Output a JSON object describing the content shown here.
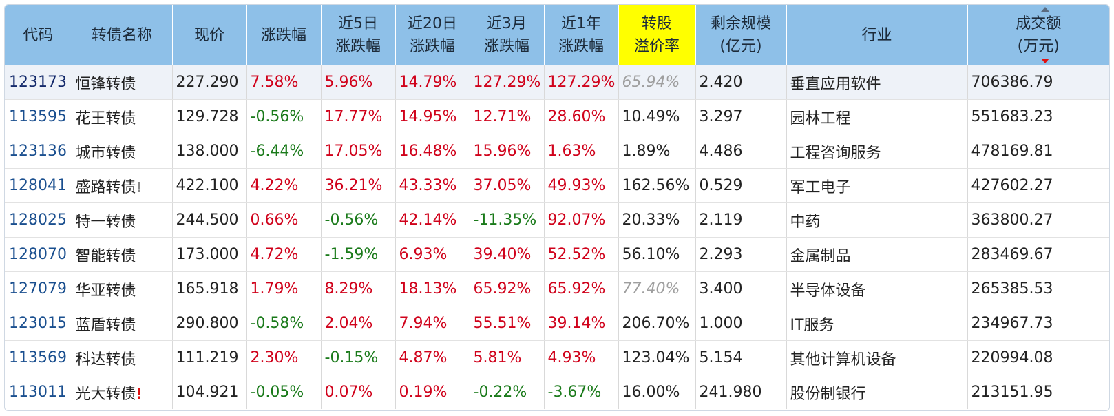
{
  "colors": {
    "header_bg": "#8ec0e8",
    "highlight_bg": "#ffff00",
    "up": "#d0021b",
    "down": "#1a7a1a",
    "code": "#1a4f8f"
  },
  "headers": {
    "code": "代码",
    "name": "转债名称",
    "price": "现价",
    "chg": "涨跌幅",
    "chg5d_l1": "近5日",
    "chg5d_l2": "涨跌幅",
    "chg20d_l1": "近20日",
    "chg20d_l2": "涨跌幅",
    "chg3m_l1": "近3月",
    "chg3m_l2": "涨跌幅",
    "chg1y_l1": "近1年",
    "chg1y_l2": "涨跌幅",
    "premium_l1": "转股",
    "premium_l2": "溢价率",
    "scale_l1": "剩余规模",
    "scale_l2": "(亿元)",
    "industry": "行业",
    "volume_l1": "成交额",
    "volume_l2": "(万元)"
  },
  "rows": [
    {
      "code": "123173",
      "name": "恒锋转债",
      "flag": "",
      "price": "227.290",
      "chg": "7.58%",
      "chg5d": "5.96%",
      "chg20d": "14.79%",
      "chg3m": "127.29%",
      "chg1y": "127.29%",
      "premium": "65.94%",
      "scale": "2.420",
      "industry": "垂直应用软件",
      "volume": "706386.79"
    },
    {
      "code": "113595",
      "name": "花王转债",
      "flag": "",
      "price": "129.728",
      "chg": "-0.56%",
      "chg5d": "17.77%",
      "chg20d": "14.95%",
      "chg3m": "12.71%",
      "chg1y": "28.60%",
      "premium": "10.49%",
      "scale": "3.297",
      "industry": "园林工程",
      "volume": "551683.23"
    },
    {
      "code": "123136",
      "name": "城市转债",
      "flag": "",
      "price": "138.000",
      "chg": "-6.44%",
      "chg5d": "17.05%",
      "chg20d": "16.48%",
      "chg3m": "15.96%",
      "chg1y": "1.63%",
      "premium": "1.89%",
      "scale": "4.486",
      "industry": "工程咨询服务",
      "volume": "478169.81"
    },
    {
      "code": "128041",
      "name": "盛路转债",
      "flag": "!",
      "price": "422.100",
      "chg": "4.22%",
      "chg5d": "36.21%",
      "chg20d": "43.33%",
      "chg3m": "37.05%",
      "chg1y": "49.93%",
      "premium": "162.56%",
      "scale": "0.529",
      "industry": "军工电子",
      "volume": "427602.27"
    },
    {
      "code": "128025",
      "name": "特一转债",
      "flag": "",
      "price": "244.500",
      "chg": "0.66%",
      "chg5d": "-0.56%",
      "chg20d": "42.14%",
      "chg3m": "-11.35%",
      "chg1y": "92.07%",
      "premium": "20.33%",
      "scale": "2.119",
      "industry": "中药",
      "volume": "363800.27"
    },
    {
      "code": "128070",
      "name": "智能转债",
      "flag": "",
      "price": "173.000",
      "chg": "4.72%",
      "chg5d": "-1.59%",
      "chg20d": "6.93%",
      "chg3m": "39.40%",
      "chg1y": "52.52%",
      "premium": "56.10%",
      "scale": "2.293",
      "industry": "金属制品",
      "volume": "283469.67"
    },
    {
      "code": "127079",
      "name": "华亚转债",
      "flag": "",
      "price": "165.918",
      "chg": "1.79%",
      "chg5d": "8.29%",
      "chg20d": "18.13%",
      "chg3m": "65.92%",
      "chg1y": "65.92%",
      "premium": "77.40%",
      "scale": "3.400",
      "industry": "半导体设备",
      "volume": "265385.53"
    },
    {
      "code": "123015",
      "name": "蓝盾转债",
      "flag": "",
      "price": "290.800",
      "chg": "-0.58%",
      "chg5d": "2.04%",
      "chg20d": "7.94%",
      "chg3m": "55.51%",
      "chg1y": "39.14%",
      "premium": "206.70%",
      "scale": "1.000",
      "industry": "IT服务",
      "volume": "234967.73"
    },
    {
      "code": "113569",
      "name": "科达转债",
      "flag": "",
      "price": "111.219",
      "chg": "2.30%",
      "chg5d": "-0.15%",
      "chg20d": "4.87%",
      "chg3m": "5.81%",
      "chg1y": "4.93%",
      "premium": "123.04%",
      "scale": "5.154",
      "industry": "其他计算机设备",
      "volume": "220994.08"
    },
    {
      "code": "113011",
      "name": "光大转债",
      "flag": "!",
      "price": "104.921",
      "chg": "-0.05%",
      "chg5d": "0.07%",
      "chg20d": "0.19%",
      "chg3m": "-0.22%",
      "chg1y": "-3.67%",
      "premium": "16.00%",
      "scale": "241.980",
      "industry": "股份制银行",
      "volume": "213151.95"
    }
  ]
}
